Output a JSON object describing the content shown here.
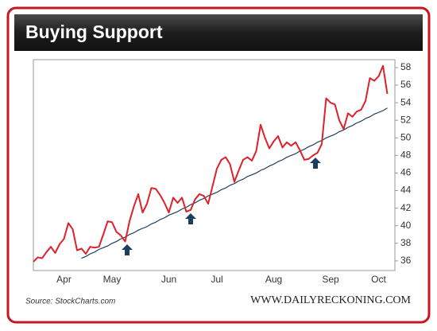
{
  "chart_data": {
    "type": "line",
    "title": "Buying Support",
    "source": "Source: StockCharts.com",
    "website": "WWW.DAILYRECKONING.COM",
    "categories": [
      null,
      null,
      null,
      null,
      null,
      null,
      null,
      "Apr",
      null,
      null,
      null,
      null,
      null,
      null,
      null,
      null,
      null,
      null,
      "May",
      null,
      null,
      null,
      null,
      null,
      null,
      null,
      null,
      null,
      null,
      null,
      null,
      "Jun",
      null,
      null,
      null,
      null,
      null,
      null,
      null,
      null,
      null,
      null,
      "Jul",
      null,
      null,
      null,
      null,
      null,
      null,
      null,
      null,
      null,
      null,
      null,
      null,
      "Aug",
      null,
      null,
      null,
      null,
      null,
      null,
      null,
      null,
      null,
      null,
      null,
      null,
      "Sep",
      null,
      null,
      null,
      null,
      null,
      null,
      null,
      null,
      null,
      null,
      "Oct",
      null,
      null
    ],
    "series": [
      {
        "color": "#e0202a",
        "values": [
          35.9,
          36.4,
          36.3,
          37.0,
          37.6,
          36.9,
          37.9,
          38.5,
          40.3,
          39.6,
          37.2,
          37.4,
          36.8,
          37.6,
          37.5,
          37.6,
          39.0,
          40.5,
          40.4,
          39.3,
          38.9,
          38.2,
          40.5,
          42.2,
          43.6,
          41.5,
          42.5,
          44.3,
          44.2,
          43.5,
          42.6,
          41.5,
          43.2,
          42.6,
          43.2,
          41.6,
          41.8,
          43.0,
          43.6,
          43.4,
          42.5,
          44.5,
          46.5,
          47.5,
          47.8,
          47.0,
          45.0,
          46.3,
          47.5,
          47.8,
          47.4,
          48.5,
          51.5,
          50.0,
          48.8,
          49.6,
          50.2,
          48.9,
          49.5,
          49.1,
          49.5,
          48.6,
          47.5,
          47.6,
          48.0,
          48.3,
          49.3,
          54.5,
          54.0,
          53.8,
          52.0,
          51.0,
          52.8,
          52.4,
          53.0,
          53.2,
          54.2,
          56.8,
          56.5,
          57.0,
          58.2,
          55.0
        ]
      },
      {
        "color": "#1b3f5e",
        "values": [
          null,
          null,
          null,
          null,
          null,
          null,
          null,
          null,
          null,
          null,
          null,
          36.3,
          36.5,
          36.8,
          37.0,
          37.3,
          37.5,
          37.7,
          38.0,
          38.2,
          38.5,
          38.7,
          39.0,
          39.2,
          39.5,
          39.7,
          39.9,
          40.2,
          40.4,
          40.7,
          40.9,
          41.2,
          41.4,
          41.6,
          41.9,
          42.1,
          42.4,
          42.6,
          42.9,
          43.1,
          43.4,
          43.6,
          43.8,
          44.1,
          44.3,
          44.6,
          44.8,
          45.1,
          45.3,
          45.6,
          45.8,
          46.0,
          46.3,
          46.5,
          46.8,
          47.0,
          47.3,
          47.5,
          47.8,
          48.0,
          48.2,
          48.5,
          48.7,
          49.0,
          49.2,
          49.5,
          49.7,
          50.0,
          50.2,
          50.4,
          50.7,
          50.9,
          51.2,
          51.4,
          51.7,
          51.9,
          52.2,
          52.4,
          52.7,
          52.9,
          53.1,
          53.4
        ]
      }
    ],
    "ylim": [
      34.9,
      58.9
    ],
    "yticks": [
      36,
      38,
      40,
      42,
      44,
      46,
      48,
      50,
      52,
      54,
      56,
      58
    ],
    "grid": false
  }
}
